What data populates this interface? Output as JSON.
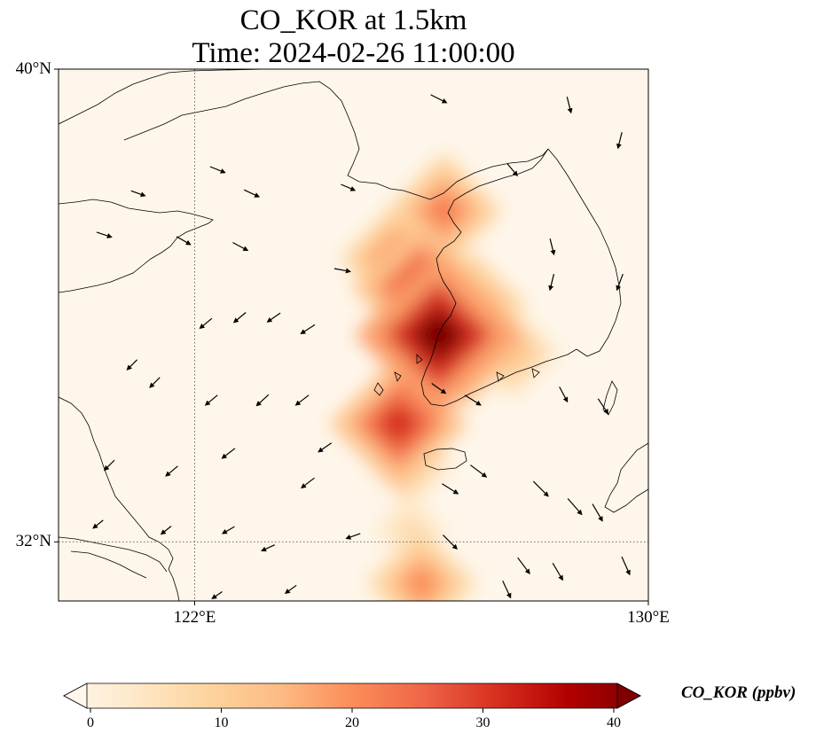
{
  "title": {
    "line1": "CO_KOR at 1.5km",
    "line2": "Time: 2024-02-26 11:00:00"
  },
  "map": {
    "extent": {
      "lon": [
        119.6,
        130.0
      ],
      "lat": [
        31.0,
        40.0
      ]
    },
    "lat_ticks": [
      {
        "value": 40,
        "label": "40°N"
      },
      {
        "value": 32,
        "label": "32°N"
      }
    ],
    "lon_ticks": [
      {
        "value": 122,
        "label": "122°E"
      },
      {
        "value": 130,
        "label": "130°E"
      }
    ],
    "gridlines": "dotted",
    "background_color": "#fef6ea",
    "coastline_color": "#000000"
  },
  "colorbar": {
    "label": "CO_KOR (ppbv)",
    "min": 0,
    "max": 40,
    "extend": "both",
    "colormap": "OrRd",
    "ticks": [
      "0",
      "10",
      "20",
      "30",
      "40"
    ],
    "stops": [
      "#fff7ec",
      "#fee8c8",
      "#fdd49e",
      "#fdbb84",
      "#fc8d59",
      "#ef6548",
      "#d7301f",
      "#b30000",
      "#7f0000"
    ]
  },
  "chart_data": {
    "type": "heatmap",
    "variable": "CO_KOR",
    "units": "ppbv",
    "blobs": [
      {
        "lon": 126.3,
        "lat": 35.5,
        "value": 40
      },
      {
        "lon": 126.8,
        "lat": 35.4,
        "value": 28
      },
      {
        "lon": 126.0,
        "lat": 36.3,
        "value": 30
      },
      {
        "lon": 125.6,
        "lat": 36.8,
        "value": 22
      },
      {
        "lon": 126.4,
        "lat": 37.6,
        "value": 22
      },
      {
        "lon": 126.9,
        "lat": 36.0,
        "value": 20
      },
      {
        "lon": 127.6,
        "lat": 35.2,
        "value": 14
      },
      {
        "lon": 125.6,
        "lat": 34.0,
        "value": 30
      },
      {
        "lon": 125.8,
        "lat": 33.3,
        "value": 12
      },
      {
        "lon": 126.0,
        "lat": 31.3,
        "value": 20
      },
      {
        "lon": 125.8,
        "lat": 32.2,
        "value": 8
      }
    ],
    "wind_vectors": [
      {
        "lon": 121.0,
        "lat": 37.9,
        "u": 1.4,
        "v": -0.5
      },
      {
        "lon": 122.4,
        "lat": 38.3,
        "u": 1.5,
        "v": -0.6
      },
      {
        "lon": 123.0,
        "lat": 37.9,
        "u": 1.5,
        "v": -0.7
      },
      {
        "lon": 124.7,
        "lat": 38.0,
        "u": 1.4,
        "v": -0.6
      },
      {
        "lon": 126.3,
        "lat": 39.5,
        "u": 1.6,
        "v": -0.8
      },
      {
        "lon": 127.6,
        "lat": 38.3,
        "u": 1.0,
        "v": -1.2
      },
      {
        "lon": 128.6,
        "lat": 39.4,
        "u": 0.4,
        "v": -1.6
      },
      {
        "lon": 129.5,
        "lat": 38.8,
        "u": -0.4,
        "v": -1.6
      },
      {
        "lon": 120.4,
        "lat": 37.2,
        "u": 1.5,
        "v": -0.5
      },
      {
        "lon": 121.8,
        "lat": 37.1,
        "u": 1.4,
        "v": -0.8
      },
      {
        "lon": 122.8,
        "lat": 37.0,
        "u": 1.5,
        "v": -0.8
      },
      {
        "lon": 124.6,
        "lat": 36.6,
        "u": 1.6,
        "v": -0.3
      },
      {
        "lon": 128.3,
        "lat": 37.0,
        "u": 0.4,
        "v": -1.6
      },
      {
        "lon": 128.3,
        "lat": 36.4,
        "u": -0.4,
        "v": -1.6
      },
      {
        "lon": 129.5,
        "lat": 36.4,
        "u": -0.6,
        "v": -1.6
      },
      {
        "lon": 122.2,
        "lat": 35.7,
        "u": -1.2,
        "v": -1.0
      },
      {
        "lon": 122.8,
        "lat": 35.8,
        "u": -1.2,
        "v": -1.0
      },
      {
        "lon": 123.4,
        "lat": 35.8,
        "u": -1.3,
        "v": -0.9
      },
      {
        "lon": 124.0,
        "lat": 35.6,
        "u": -1.4,
        "v": -0.9
      },
      {
        "lon": 120.9,
        "lat": 35.0,
        "u": -1.0,
        "v": -1.0
      },
      {
        "lon": 121.3,
        "lat": 34.7,
        "u": -1.0,
        "v": -1.0
      },
      {
        "lon": 122.3,
        "lat": 34.4,
        "u": -1.2,
        "v": -1.0
      },
      {
        "lon": 123.2,
        "lat": 34.4,
        "u": -1.2,
        "v": -1.1
      },
      {
        "lon": 123.9,
        "lat": 34.4,
        "u": -1.3,
        "v": -1.0
      },
      {
        "lon": 126.3,
        "lat": 34.6,
        "u": 1.4,
        "v": -1.0
      },
      {
        "lon": 126.9,
        "lat": 34.4,
        "u": 1.6,
        "v": -1.0
      },
      {
        "lon": 128.5,
        "lat": 34.5,
        "u": 0.8,
        "v": -1.5
      },
      {
        "lon": 129.2,
        "lat": 34.3,
        "u": 1.0,
        "v": -1.5
      },
      {
        "lon": 120.5,
        "lat": 33.3,
        "u": -1.0,
        "v": -1.0
      },
      {
        "lon": 121.6,
        "lat": 33.2,
        "u": -1.2,
        "v": -1.0
      },
      {
        "lon": 122.6,
        "lat": 33.5,
        "u": -1.3,
        "v": -1.0
      },
      {
        "lon": 124.3,
        "lat": 33.6,
        "u": -1.3,
        "v": -0.9
      },
      {
        "lon": 124.0,
        "lat": 33.0,
        "u": -1.3,
        "v": -1.0
      },
      {
        "lon": 126.5,
        "lat": 32.9,
        "u": 1.6,
        "v": -1.0
      },
      {
        "lon": 127.0,
        "lat": 33.2,
        "u": 1.6,
        "v": -1.2
      },
      {
        "lon": 128.1,
        "lat": 32.9,
        "u": 1.5,
        "v": -1.5
      },
      {
        "lon": 128.7,
        "lat": 32.6,
        "u": 1.4,
        "v": -1.6
      },
      {
        "lon": 129.1,
        "lat": 32.5,
        "u": 1.0,
        "v": -1.7
      },
      {
        "lon": 120.3,
        "lat": 32.3,
        "u": -1.0,
        "v": -0.8
      },
      {
        "lon": 121.5,
        "lat": 32.2,
        "u": -1.0,
        "v": -0.8
      },
      {
        "lon": 122.6,
        "lat": 32.2,
        "u": -1.2,
        "v": -0.7
      },
      {
        "lon": 123.3,
        "lat": 31.9,
        "u": -1.3,
        "v": -0.6
      },
      {
        "lon": 124.8,
        "lat": 32.1,
        "u": -1.4,
        "v": -0.5
      },
      {
        "lon": 126.5,
        "lat": 32.0,
        "u": 1.4,
        "v": -1.4
      },
      {
        "lon": 127.8,
        "lat": 31.6,
        "u": 1.2,
        "v": -1.6
      },
      {
        "lon": 128.4,
        "lat": 31.5,
        "u": 1.0,
        "v": -1.7
      },
      {
        "lon": 129.6,
        "lat": 31.6,
        "u": 0.8,
        "v": -1.8
      },
      {
        "lon": 122.4,
        "lat": 31.1,
        "u": -1.0,
        "v": -0.7
      },
      {
        "lon": 123.7,
        "lat": 31.2,
        "u": -1.1,
        "v": -0.8
      },
      {
        "lon": 127.5,
        "lat": 31.2,
        "u": 0.8,
        "v": -1.7
      }
    ]
  }
}
